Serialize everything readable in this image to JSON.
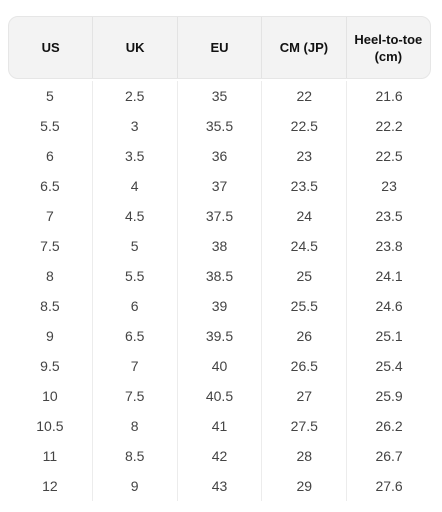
{
  "table": {
    "headers": [
      "US",
      "UK",
      "EU",
      "CM (JP)",
      "Heel-to-toe\n(cm)"
    ],
    "columns": [
      [
        "5",
        "5.5",
        "6",
        "6.5",
        "7",
        "7.5",
        "8",
        "8.5",
        "9",
        "9.5",
        "10",
        "10.5",
        "11",
        "12"
      ],
      [
        "2.5",
        "3",
        "3.5",
        "4",
        "4.5",
        "5",
        "5.5",
        "6",
        "6.5",
        "7",
        "7.5",
        "8",
        "8.5",
        "9"
      ],
      [
        "35",
        "35.5",
        "36",
        "37",
        "37.5",
        "38",
        "38.5",
        "39",
        "39.5",
        "40",
        "40.5",
        "41",
        "42",
        "43"
      ],
      [
        "22",
        "22.5",
        "23",
        "23.5",
        "24",
        "24.5",
        "25",
        "25.5",
        "26",
        "26.5",
        "27",
        "27.5",
        "28",
        "29"
      ],
      [
        "21.6",
        "22.2",
        "22.5",
        "23",
        "23.5",
        "23.8",
        "24.1",
        "24.6",
        "25.1",
        "25.4",
        "25.9",
        "26.2",
        "26.7",
        "27.6"
      ]
    ]
  }
}
